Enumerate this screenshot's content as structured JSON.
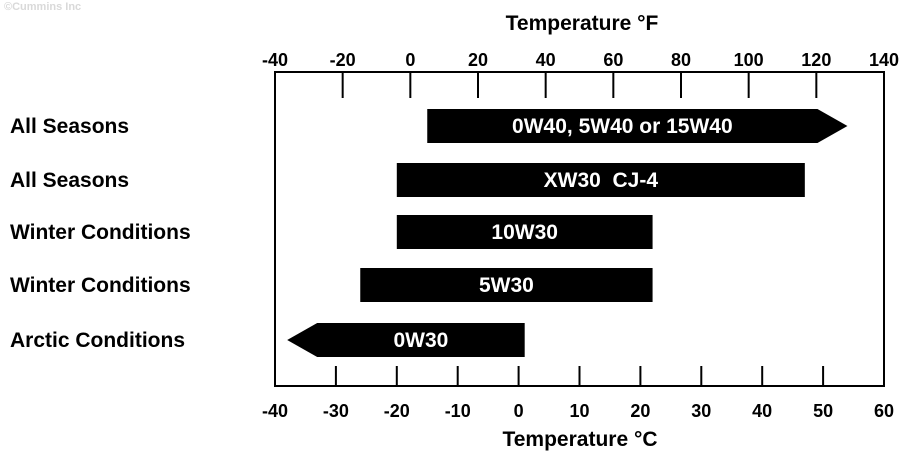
{
  "watermark": "©Cummins Inc",
  "colors": {
    "bar": "#000000",
    "bar_text": "#ffffff",
    "axis": "#000000",
    "plot_background": "#ffffff",
    "watermark": "#d9d9d9"
  },
  "chart_data": {
    "type": "bar",
    "orientation": "horizontal-range",
    "top_axis": {
      "label": "Temperature °F",
      "ticks": [
        -40,
        -20,
        0,
        20,
        40,
        60,
        80,
        100,
        120,
        140
      ]
    },
    "bottom_axis": {
      "label": "Temperature °C",
      "ticks": [
        -40,
        -30,
        -20,
        -10,
        0,
        10,
        20,
        30,
        40,
        50,
        60
      ],
      "range": [
        -40,
        60
      ]
    },
    "grid": false,
    "rows": [
      {
        "category": "All Seasons",
        "oil": "0W40, 5W40 or 15W40",
        "min_c": -15,
        "max_c": 54,
        "arrow": "right"
      },
      {
        "category": "All Seasons",
        "oil": "XW30  CJ-4",
        "min_c": -20,
        "max_c": 47,
        "arrow": "none"
      },
      {
        "category": "Winter Conditions",
        "oil": "10W30",
        "min_c": -20,
        "max_c": 22,
        "arrow": "none"
      },
      {
        "category": "Winter Conditions",
        "oil": "5W30",
        "min_c": -26,
        "max_c": 22,
        "arrow": "none"
      },
      {
        "category": "Arctic Conditions",
        "oil": "0W30",
        "min_c": -38,
        "max_c": 1,
        "arrow": "left"
      }
    ]
  }
}
